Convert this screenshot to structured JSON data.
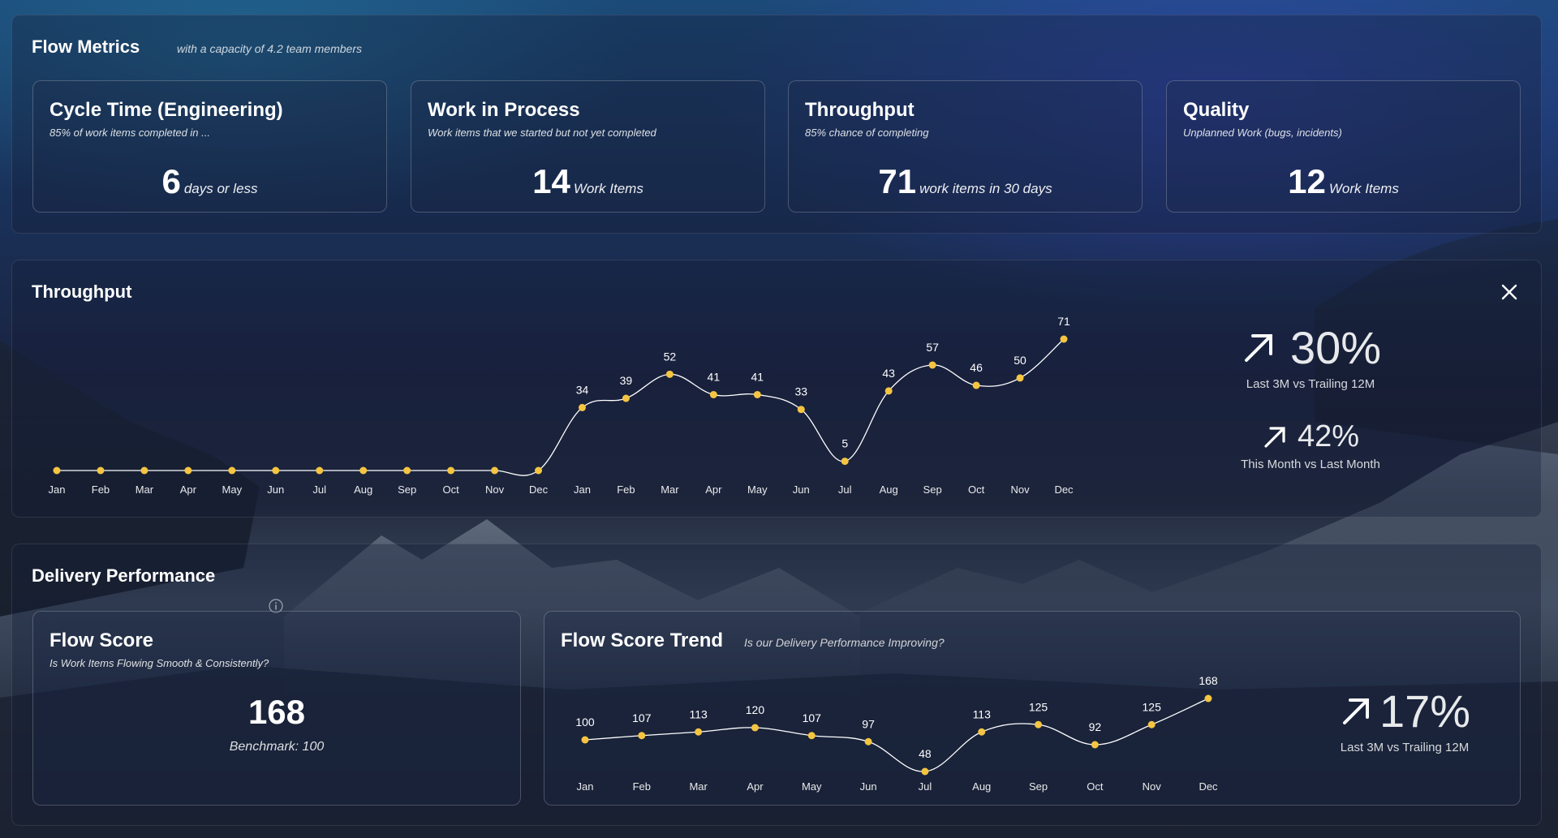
{
  "flow_metrics": {
    "title": "Flow Metrics",
    "subtitle": "with a capacity of 4.2 team members",
    "cards": [
      {
        "title": "Cycle Time (Engineering)",
        "subtitle": "85% of work items completed in ...",
        "value": "6",
        "unit": "days or less"
      },
      {
        "title": "Work in Process",
        "subtitle": "Work items that we started but not yet completed",
        "value": "14",
        "unit": "Work Items"
      },
      {
        "title": "Throughput",
        "subtitle": "85% chance of completing",
        "value": "71",
        "unit": "work items in 30 days"
      },
      {
        "title": "Quality",
        "subtitle": "Unplanned Work (bugs, incidents)",
        "value": "12",
        "unit": "Work Items"
      }
    ]
  },
  "throughput": {
    "title": "Throughput",
    "close_icon": "close-icon",
    "stats": [
      {
        "arrow": "arrow-up-right-icon",
        "value": "30%",
        "label": "Last 3M vs Trailing 12M"
      },
      {
        "arrow": "arrow-up-right-icon",
        "value": "42%",
        "label": "This Month vs Last Month"
      }
    ]
  },
  "delivery": {
    "title": "Delivery Performance",
    "info_icon": "info-icon",
    "flow_score": {
      "title": "Flow Score",
      "subtitle": "Is Work Items Flowing Smooth & Consistently?",
      "value": "168",
      "benchmark": "Benchmark: 100"
    },
    "trend": {
      "title": "Flow Score Trend",
      "subtitle": "Is our Delivery Performance Improving?",
      "stat": {
        "arrow": "arrow-up-right-icon",
        "value": "17%",
        "label": "Last 3M vs Trailing 12M"
      }
    }
  },
  "colors": {
    "point": "#f5c542",
    "line": "#ffffff"
  },
  "chart_data": [
    {
      "type": "line",
      "title": "Throughput",
      "categories": [
        "Jan",
        "Feb",
        "Mar",
        "Apr",
        "May",
        "Jun",
        "Jul",
        "Aug",
        "Sep",
        "Oct",
        "Nov",
        "Dec",
        "Jan",
        "Feb",
        "Mar",
        "Apr",
        "May",
        "Jun",
        "Jul",
        "Aug",
        "Sep",
        "Oct",
        "Nov",
        "Dec"
      ],
      "values": [
        0,
        0,
        0,
        0,
        0,
        0,
        0,
        0,
        0,
        0,
        0,
        0,
        34,
        39,
        52,
        41,
        41,
        33,
        5,
        43,
        57,
        46,
        50,
        71
      ],
      "value_labels": [
        "",
        "",
        "",
        "",
        "",
        "",
        "",
        "",
        "",
        "",
        "",
        "",
        "34",
        "39",
        "52",
        "41",
        "41",
        "33",
        "5",
        "43",
        "57",
        "46",
        "50",
        "71"
      ],
      "ylim": [
        0,
        71
      ],
      "grid": false
    },
    {
      "type": "line",
      "title": "Flow Score Trend",
      "categories": [
        "Jan",
        "Feb",
        "Mar",
        "Apr",
        "May",
        "Jun",
        "Jul",
        "Aug",
        "Sep",
        "Oct",
        "Nov",
        "Dec"
      ],
      "values": [
        100,
        107,
        113,
        120,
        107,
        97,
        48,
        113,
        125,
        92,
        125,
        168
      ],
      "ylim": [
        48,
        168
      ],
      "grid": false
    }
  ]
}
